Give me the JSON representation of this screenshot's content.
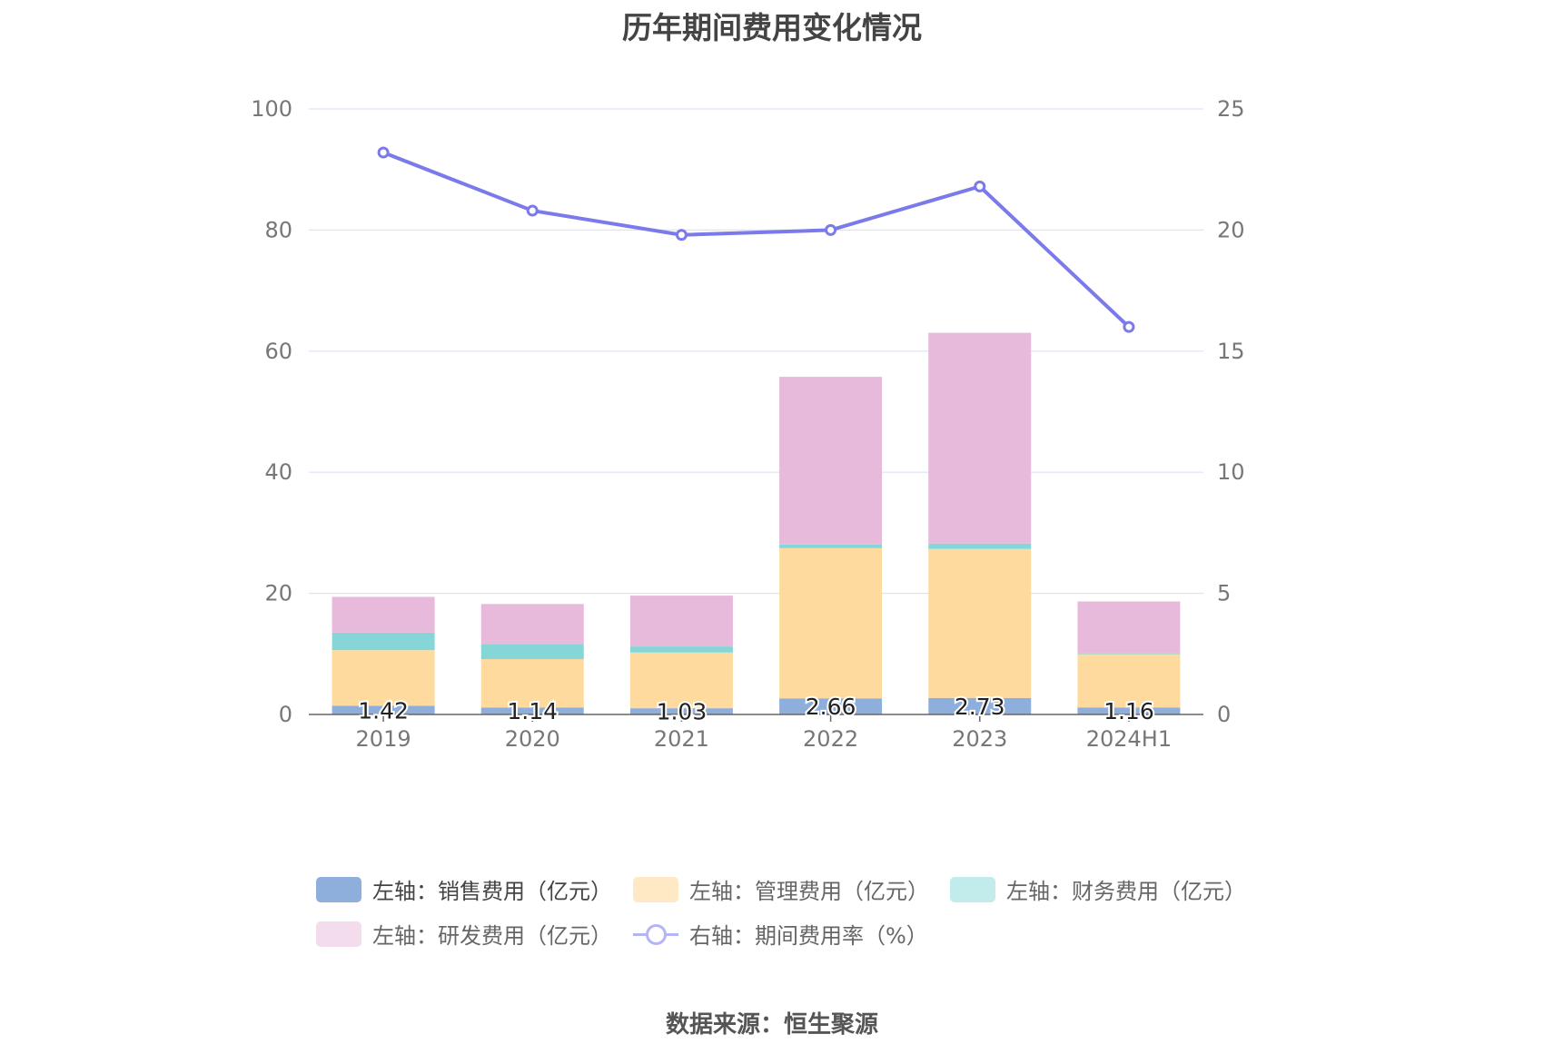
{
  "chart_data": {
    "type": "bar",
    "title": "历年期间费用变化情况",
    "categories": [
      "2019",
      "2020",
      "2021",
      "2022",
      "2023",
      "2024H1"
    ],
    "left_axis": {
      "ylim": [
        0,
        100
      ],
      "ticks": [
        0,
        20,
        40,
        60,
        80,
        100
      ]
    },
    "right_axis": {
      "ylim": [
        0,
        25
      ],
      "ticks": [
        0,
        5,
        10,
        15,
        20,
        25
      ]
    },
    "stacked": true,
    "series": [
      {
        "name": "左轴：销售费用（亿元）",
        "axis": "left",
        "kind": "bar",
        "color": "#8eaedc",
        "values": [
          1.42,
          1.14,
          1.03,
          2.66,
          2.73,
          1.16
        ],
        "labels": [
          "1.42",
          "1.14",
          "1.03",
          "2.66",
          "2.73",
          "1.16"
        ]
      },
      {
        "name": "左轴：管理费用（亿元）",
        "axis": "left",
        "kind": "bar",
        "color": "#ffda9e",
        "values": [
          9.2,
          8.0,
          9.2,
          24.8,
          24.6,
          8.8
        ]
      },
      {
        "name": "左轴：财务费用（亿元）",
        "axis": "left",
        "kind": "bar",
        "color": "#86d6d8",
        "values": [
          2.9,
          2.5,
          1.0,
          0.6,
          0.9,
          0.1
        ]
      },
      {
        "name": "左轴：研发费用（亿元）",
        "axis": "left",
        "kind": "bar",
        "color": "#e7b9da",
        "values": [
          5.9,
          6.6,
          8.4,
          27.7,
          34.8,
          8.6
        ]
      },
      {
        "name": "右轴：期间费用率（%）",
        "axis": "right",
        "kind": "line",
        "color": "#7b7aea",
        "values": [
          23.2,
          20.8,
          19.8,
          20.0,
          21.8,
          16.0
        ]
      }
    ],
    "legend_position": "bottom",
    "grid": true
  },
  "legend": {
    "items": [
      {
        "label": "左轴：销售费用（亿元）",
        "color": "#8eaedc"
      },
      {
        "label": "左轴：管理费用（亿元）",
        "color": "#ffe8c4"
      },
      {
        "label": "左轴：财务费用（亿元）",
        "color": "#c2ecec"
      },
      {
        "label": "左轴：研发费用（亿元）",
        "color": "#f3dcec"
      },
      {
        "label": "右轴：期间费用率（%）",
        "color": "#b3b5f7"
      }
    ]
  },
  "source": "数据来源：恒生聚源"
}
